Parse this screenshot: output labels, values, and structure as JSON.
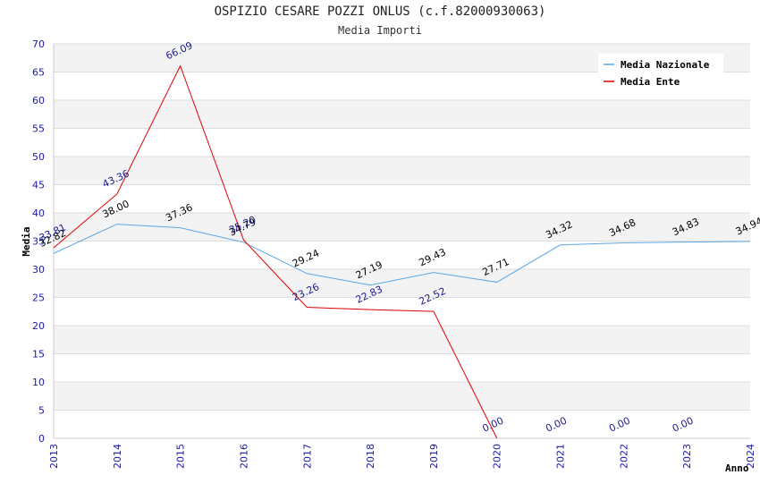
{
  "chart_data": {
    "type": "line",
    "title": "OSPIZIO CESARE POZZI ONLUS (c.f.82000930063)",
    "subtitle": "Media Importi",
    "xlabel": "Anno",
    "ylabel": "Media",
    "ylim": [
      0,
      70
    ],
    "yticks": [
      0,
      5,
      10,
      15,
      20,
      25,
      30,
      35,
      40,
      45,
      50,
      55,
      60,
      65,
      70
    ],
    "x": [
      "2013",
      "2014",
      "2015",
      "2016",
      "2017",
      "2018",
      "2019",
      "2020",
      "2021",
      "2022",
      "2023",
      "2024"
    ],
    "legend_position": "top-right",
    "grid": true,
    "series": [
      {
        "name": "Media Nazionale",
        "color": "#5aa6e6",
        "values": [
          32.82,
          38.0,
          37.36,
          34.79,
          29.24,
          27.19,
          29.43,
          27.71,
          34.32,
          34.68,
          34.83,
          34.94
        ],
        "labels": [
          "32.82",
          "38.00",
          "37.36",
          "34.79",
          "29.24",
          "27.19",
          "29.43",
          "27.71",
          "34.32",
          "34.68",
          "34.83",
          "34.94"
        ]
      },
      {
        "name": "Media Ente",
        "color": "#e00000",
        "values": [
          33.81,
          43.36,
          66.09,
          35.2,
          23.26,
          22.83,
          22.52,
          0.0,
          0.0,
          0.0,
          0.0,
          null
        ],
        "labels": [
          "33.81",
          "43.36",
          "66.09",
          "35.20",
          "23.26",
          "22.83",
          "22.52",
          "0.00",
          "0.00",
          "0.00",
          "0.00",
          null
        ]
      }
    ]
  }
}
